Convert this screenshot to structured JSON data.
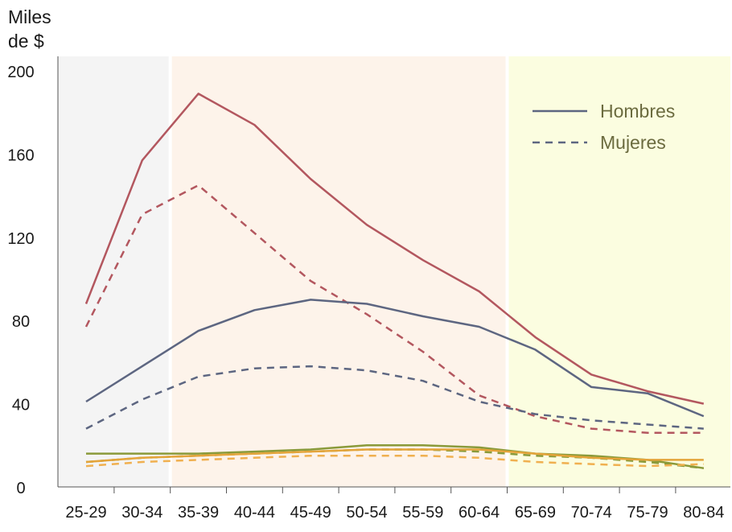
{
  "chart_data": {
    "type": "line",
    "title": "",
    "ylabel_line1": "Miles",
    "ylabel_line2": "de $",
    "xlabel": "",
    "ylim": [
      0,
      200
    ],
    "yticks": [
      "0",
      "40",
      "80",
      "120",
      "160",
      "200"
    ],
    "categories": [
      "25-29",
      "30-34",
      "35-39",
      "40-44",
      "45-49",
      "50-54",
      "55-59",
      "60-64",
      "65-69",
      "70-74",
      "75-79",
      "80-84"
    ],
    "bands": [
      {
        "name": "band-early",
        "from": "25-29",
        "to": "30-34",
        "color": "#f4f4f4"
      },
      {
        "name": "band-working",
        "from": "35-39",
        "to": "60-64",
        "color": "#fdf3ea"
      },
      {
        "name": "band-retired",
        "from": "65-69",
        "to": "80-84",
        "color": "#fbfde0"
      }
    ],
    "legend": [
      {
        "label": "Hombres",
        "style": "solid"
      },
      {
        "label": "Mujeres",
        "style": "dashed"
      }
    ],
    "series": [
      {
        "name": "top-hombres",
        "group": "Hombres",
        "style": "solid",
        "color": "#b3575f",
        "values": [
          88,
          157,
          189,
          174,
          148,
          126,
          109,
          94,
          72,
          54,
          46,
          40
        ]
      },
      {
        "name": "top-mujeres",
        "group": "Mujeres",
        "style": "dashed",
        "color": "#b3575f",
        "values": [
          77,
          131,
          145,
          122,
          99,
          83,
          65,
          44,
          34,
          28,
          26,
          26
        ]
      },
      {
        "name": "middle-hombres",
        "group": "Hombres",
        "style": "solid",
        "color": "#5d6681",
        "values": [
          41,
          58,
          75,
          85,
          90,
          88,
          82,
          77,
          66,
          48,
          45,
          34
        ]
      },
      {
        "name": "middle-mujeres",
        "group": "Mujeres",
        "style": "dashed",
        "color": "#5d6681",
        "values": [
          28,
          42,
          53,
          57,
          58,
          56,
          51,
          41,
          35,
          32,
          30,
          28
        ]
      },
      {
        "name": "bottom1-hombres",
        "group": "Hombres",
        "style": "solid",
        "color": "#8a9a3a",
        "values": [
          16,
          16,
          16,
          17,
          18,
          20,
          20,
          19,
          16,
          15,
          13,
          9
        ]
      },
      {
        "name": "bottom1-mujeres",
        "group": "Mujeres",
        "style": "dashed",
        "color": "#8a9a3a",
        "values": [
          12,
          14,
          15,
          16,
          17,
          18,
          18,
          17,
          15,
          14,
          12,
          9
        ]
      },
      {
        "name": "bottom2-hombres",
        "group": "Hombres",
        "style": "solid",
        "color": "#e4a43a",
        "values": [
          12,
          14,
          15,
          16,
          17,
          18,
          18,
          18,
          16,
          14,
          13,
          13
        ]
      },
      {
        "name": "bottom2-mujeres",
        "group": "Mujeres",
        "style": "dashed",
        "color": "#f0b050",
        "values": [
          10,
          12,
          13,
          14,
          15,
          15,
          15,
          14,
          12,
          11,
          10,
          11
        ]
      }
    ]
  }
}
